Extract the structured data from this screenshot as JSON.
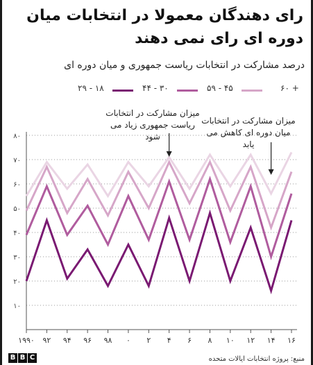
{
  "title": "رای دهندگان معمولا در انتخابات میان دوره ای رای نمی دهند",
  "subtitle": "درصد مشارکت در انتخابات ریاست جمهوری و میان دوره ای",
  "annotations": {
    "presidential": "میزان مشارکت در انتخابات ریاست جمهوری زیاد می شود",
    "midterm": "میزان مشارکت در انتخابات میان دوره ای کاهش می یابد"
  },
  "footer": {
    "logo": [
      "B",
      "B",
      "C"
    ],
    "source": "منبع: پروژه انتخابات ایالات متحده"
  },
  "colors": {
    "age_18_29": "#7a1a72",
    "age_30_44": "#b05c9e",
    "age_45_59": "#d6a6c8",
    "age_60_plus": "#ead5e4",
    "axis": "#555555",
    "grid": "#9a9a9a"
  },
  "chart_data": {
    "type": "line",
    "x": [
      "۱۹۹۰",
      "۹۲",
      "۹۴",
      "۹۶",
      "۹۸",
      "۰",
      "۲",
      "۴",
      "۶",
      "۸",
      "۱۰",
      "۱۲",
      "۱۴",
      "۱۶"
    ],
    "y_ticks": [
      "۱۰",
      "۲۰",
      "۳۰",
      "۴۰",
      "۵۰",
      "۶۰",
      "۷۰",
      "۸۰"
    ],
    "ylim": [
      0,
      80
    ],
    "grid": "horizontal-dotted",
    "legend_position": "top",
    "series": [
      {
        "name": "۱۸ - ۲۹",
        "color_key": "age_18_29",
        "values": [
          20,
          45,
          21,
          33,
          18,
          35,
          18,
          46,
          20,
          48,
          20,
          42,
          16,
          45
        ]
      },
      {
        "name": "۳۰ - ۴۴",
        "color_key": "age_30_44",
        "values": [
          39,
          59,
          39,
          51,
          35,
          55,
          37,
          61,
          37,
          62,
          36,
          59,
          30,
          56
        ]
      },
      {
        "name": "۴۵ - ۵۹",
        "color_key": "age_45_59",
        "values": [
          49,
          67,
          48,
          62,
          47,
          65,
          50,
          69,
          52,
          69,
          49,
          67,
          42,
          65
        ]
      },
      {
        "name": "+ ۶۰",
        "color_key": "age_60_plus",
        "values": [
          55,
          69,
          58,
          68,
          55,
          69,
          59,
          71,
          58,
          72,
          59,
          72,
          56,
          73
        ]
      }
    ]
  }
}
